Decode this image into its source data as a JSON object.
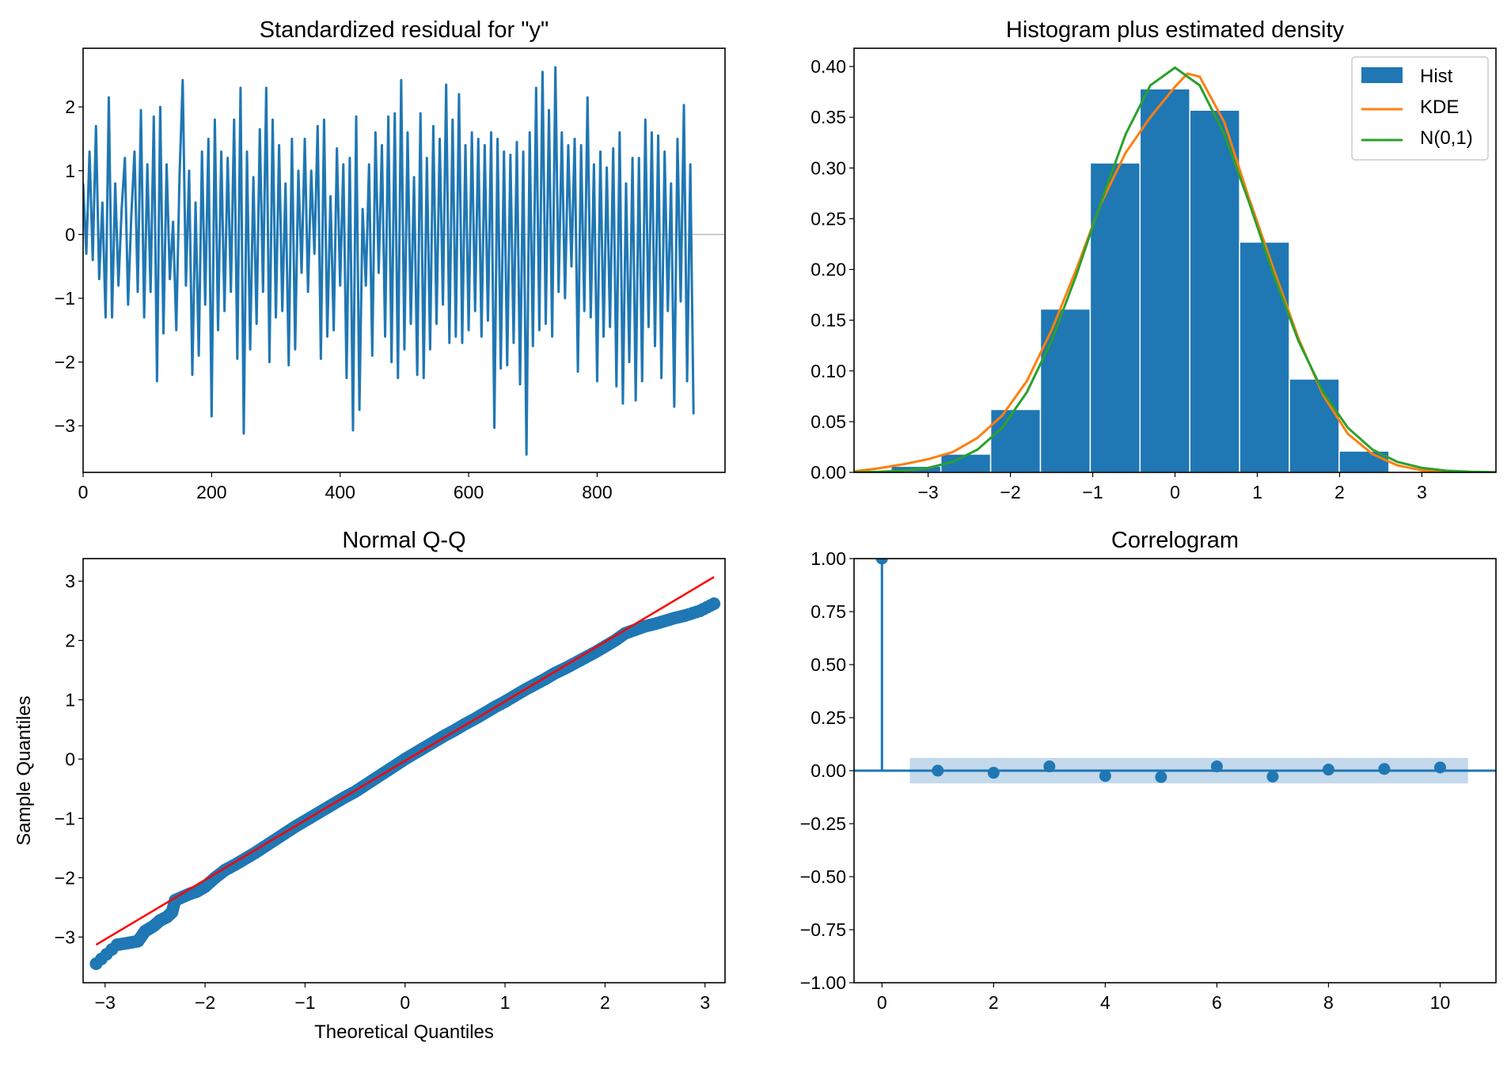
{
  "colors": {
    "blue": "#1f77b4",
    "orange": "#ff7f0e",
    "green": "#2ca02c",
    "red": "#ff0000",
    "band": "#c4d9eb"
  },
  "chart_data": [
    {
      "type": "line",
      "title": "Standardized residual for \"y\"",
      "xlabel": "",
      "ylabel": "",
      "xlim": [
        0,
        999
      ],
      "ylim": [
        -3.73,
        2.92
      ],
      "xticks": [
        "0",
        "200",
        "400",
        "600",
        "800"
      ],
      "xtick_values": [
        0,
        200,
        400,
        600,
        800
      ],
      "yticks": [
        "−3",
        "−2",
        "−1",
        "0",
        "1",
        "2"
      ],
      "ytick_values": [
        -3,
        -2,
        -1,
        0,
        1,
        2
      ],
      "x_step": 5,
      "values": [
        0.8,
        -0.3,
        1.3,
        -0.4,
        1.7,
        -0.7,
        0.5,
        -1.3,
        2.15,
        -1.3,
        0.8,
        -0.8,
        0.4,
        1.2,
        -1.1,
        0.3,
        1.3,
        -0.9,
        1.95,
        -1.3,
        1.1,
        -0.9,
        1.85,
        -2.3,
        2.0,
        -1.55,
        1.1,
        -0.7,
        0.2,
        -1.5,
        0.9,
        2.42,
        -0.8,
        1.0,
        -2.2,
        0.5,
        -1.9,
        1.3,
        -1.1,
        1.5,
        -2.85,
        1.8,
        -1.5,
        1.3,
        -1.2,
        1.2,
        -0.9,
        1.8,
        -1.95,
        2.3,
        -3.12,
        1.3,
        -1.8,
        0.9,
        -1.4,
        1.65,
        -0.9,
        2.3,
        -2.0,
        1.8,
        -1.3,
        1.4,
        -1.2,
        0.8,
        -2.05,
        1.5,
        -1.8,
        1.0,
        -0.6,
        1.5,
        -0.9,
        1.0,
        -0.3,
        1.7,
        -1.95,
        1.8,
        -1.6,
        0.6,
        -1.5,
        1.35,
        -0.8,
        1.1,
        -2.25,
        1.2,
        -3.07,
        1.85,
        -2.75,
        0.4,
        -0.8,
        1.1,
        -1.9,
        1.6,
        -0.6,
        1.4,
        -1.6,
        1.85,
        -2.0,
        1.9,
        -2.25,
        2.42,
        -1.8,
        1.6,
        -1.4,
        0.9,
        -2.2,
        1.9,
        -2.25,
        1.2,
        -1.8,
        1.7,
        -1.4,
        1.5,
        -1.1,
        2.35,
        -1.7,
        1.8,
        -1.6,
        2.2,
        -1.7,
        1.4,
        -1.5,
        1.6,
        -1.2,
        1.5,
        -1.6,
        1.4,
        -1.35,
        1.6,
        -3.03,
        1.5,
        -2.1,
        1.3,
        -2.05,
        1.25,
        -1.7,
        1.45,
        -2.35,
        1.3,
        -3.45,
        1.6,
        -1.75,
        2.3,
        -1.5,
        2.55,
        -1.4,
        1.95,
        -1.6,
        2.62,
        -0.9,
        1.6,
        -1.0,
        1.4,
        -0.5,
        1.5,
        -2.15,
        1.4,
        -1.2,
        2.15,
        -1.3,
        1.1,
        -2.3,
        1.3,
        -1.6,
        1.05,
        -1.45,
        1.35,
        -2.38,
        1.6,
        -2.65,
        0.8,
        -2.0,
        1.2,
        -2.6,
        1.2,
        -2.3,
        1.8,
        -1.45,
        1.6,
        -1.75,
        1.55,
        -2.25,
        1.3,
        -1.2,
        0.8,
        -2.7,
        1.5,
        -1.05,
        2.03,
        -2.3,
        1.1,
        -2.82
      ]
    },
    {
      "type": "bar",
      "title": "Histogram plus estimated density",
      "xlim": [
        -3.9,
        3.9
      ],
      "ylim": [
        0,
        0.418
      ],
      "xticks": [
        "−3",
        "−2",
        "−1",
        "0",
        "1",
        "2",
        "3"
      ],
      "xtick_values": [
        -3,
        -2,
        -1,
        0,
        1,
        2,
        3
      ],
      "yticks": [
        "0.00",
        "0.05",
        "0.10",
        "0.15",
        "0.20",
        "0.25",
        "0.30",
        "0.35",
        "0.40"
      ],
      "ytick_values": [
        0,
        0.05,
        0.1,
        0.15,
        0.2,
        0.25,
        0.3,
        0.35,
        0.4
      ],
      "bin_edges": [
        -3.45,
        -2.845,
        -2.24,
        -1.635,
        -1.03,
        -0.425,
        0.18,
        0.785,
        1.39,
        1.995,
        2.6
      ],
      "hist": [
        0.006,
        0.018,
        0.062,
        0.161,
        0.305,
        0.378,
        0.357,
        0.227,
        0.092,
        0.021
      ],
      "legend": {
        "placement": "top-right",
        "entries": [
          "Hist",
          "KDE",
          "N(0,1)"
        ]
      },
      "series": [
        {
          "name": "KDE",
          "x": [
            -3.9,
            -3.6,
            -3.3,
            -3.0,
            -2.7,
            -2.4,
            -2.1,
            -1.8,
            -1.5,
            -1.2,
            -0.9,
            -0.6,
            -0.3,
            0.0,
            0.15,
            0.3,
            0.6,
            0.9,
            1.2,
            1.5,
            1.8,
            2.1,
            2.4,
            2.7,
            3.0,
            3.3,
            3.6,
            3.9
          ],
          "values": [
            0.001,
            0.004,
            0.008,
            0.013,
            0.02,
            0.034,
            0.056,
            0.09,
            0.14,
            0.2,
            0.265,
            0.315,
            0.35,
            0.38,
            0.393,
            0.39,
            0.345,
            0.27,
            0.2,
            0.132,
            0.076,
            0.038,
            0.018,
            0.007,
            0.002,
            0.0005,
            0.0001,
            0.0
          ]
        },
        {
          "name": "N(0,1)",
          "x": [
            -3.9,
            -3.6,
            -3.3,
            -3.0,
            -2.7,
            -2.4,
            -2.1,
            -1.8,
            -1.5,
            -1.2,
            -0.9,
            -0.6,
            -0.3,
            0.0,
            0.3,
            0.6,
            0.9,
            1.2,
            1.5,
            1.8,
            2.1,
            2.4,
            2.7,
            3.0,
            3.3,
            3.6,
            3.9
          ],
          "values": [
            0.0002,
            0.0006,
            0.0017,
            0.0044,
            0.0104,
            0.0224,
            0.044,
            0.079,
            0.1295,
            0.1942,
            0.2661,
            0.3332,
            0.3814,
            0.3989,
            0.3814,
            0.3332,
            0.2661,
            0.1942,
            0.1295,
            0.079,
            0.044,
            0.0224,
            0.0104,
            0.0044,
            0.0017,
            0.0006,
            0.0002
          ]
        }
      ]
    },
    {
      "type": "scatter",
      "title": "Normal Q-Q",
      "xlabel": "Theoretical Quantiles",
      "ylabel": "Sample Quantiles",
      "xlim": [
        -3.22,
        3.2
      ],
      "ylim": [
        -3.77,
        3.38
      ],
      "xticks": [
        "−3",
        "−2",
        "−1",
        "0",
        "1",
        "2",
        "3"
      ],
      "xtick_values": [
        -3,
        -2,
        -1,
        0,
        1,
        2,
        3
      ],
      "yticks": [
        "−3",
        "−2",
        "−1",
        "0",
        "1",
        "2",
        "3"
      ],
      "ytick_values": [
        -3,
        -2,
        -1,
        0,
        1,
        2,
        3
      ],
      "points": [
        [
          -3.09,
          -3.45
        ],
        [
          -2.88,
          -3.13
        ],
        [
          -2.77,
          -3.1
        ],
        [
          -2.67,
          -3.07
        ],
        [
          -2.6,
          -2.9
        ],
        [
          -2.52,
          -2.82
        ],
        [
          -2.45,
          -2.72
        ],
        [
          -2.38,
          -2.66
        ],
        [
          -2.33,
          -2.58
        ],
        [
          -2.3,
          -2.38
        ],
        [
          -2.22,
          -2.32
        ],
        [
          -2.15,
          -2.27
        ],
        [
          -2.08,
          -2.23
        ],
        [
          -2.0,
          -2.15
        ],
        [
          -1.9,
          -2.0
        ],
        [
          -1.8,
          -1.87
        ],
        [
          -1.7,
          -1.78
        ],
        [
          -1.6,
          -1.68
        ],
        [
          -1.5,
          -1.58
        ],
        [
          -1.4,
          -1.47
        ],
        [
          -1.3,
          -1.36
        ],
        [
          -1.2,
          -1.25
        ],
        [
          -1.1,
          -1.14
        ],
        [
          -1.0,
          -1.04
        ],
        [
          -0.9,
          -0.94
        ],
        [
          -0.8,
          -0.84
        ],
        [
          -0.7,
          -0.74
        ],
        [
          -0.6,
          -0.64
        ],
        [
          -0.5,
          -0.55
        ],
        [
          -0.4,
          -0.44
        ],
        [
          -0.3,
          -0.33
        ],
        [
          -0.2,
          -0.22
        ],
        [
          -0.1,
          -0.11
        ],
        [
          0.0,
          0.0
        ],
        [
          0.1,
          0.1
        ],
        [
          0.2,
          0.2
        ],
        [
          0.3,
          0.3
        ],
        [
          0.4,
          0.4
        ],
        [
          0.5,
          0.49
        ],
        [
          0.6,
          0.59
        ],
        [
          0.7,
          0.68
        ],
        [
          0.8,
          0.78
        ],
        [
          0.9,
          0.88
        ],
        [
          1.0,
          0.97
        ],
        [
          1.1,
          1.07
        ],
        [
          1.2,
          1.17
        ],
        [
          1.3,
          1.26
        ],
        [
          1.4,
          1.35
        ],
        [
          1.5,
          1.45
        ],
        [
          1.6,
          1.53
        ],
        [
          1.7,
          1.62
        ],
        [
          1.8,
          1.71
        ],
        [
          1.9,
          1.8
        ],
        [
          2.0,
          1.9
        ],
        [
          2.1,
          2.0
        ],
        [
          2.2,
          2.12
        ],
        [
          2.3,
          2.18
        ],
        [
          2.4,
          2.24
        ],
        [
          2.5,
          2.28
        ],
        [
          2.6,
          2.33
        ],
        [
          2.7,
          2.38
        ],
        [
          2.8,
          2.42
        ],
        [
          2.95,
          2.5
        ],
        [
          3.09,
          2.62
        ]
      ],
      "reference_line": [
        [
          -3.09,
          -3.13
        ],
        [
          3.09,
          3.07
        ]
      ]
    },
    {
      "type": "stem",
      "title": "Correlogram",
      "xlim": [
        -0.5,
        11
      ],
      "ylim": [
        -1,
        1
      ],
      "xticks": [
        "0",
        "2",
        "4",
        "6",
        "8",
        "10"
      ],
      "xtick_values": [
        0,
        2,
        4,
        6,
        8,
        10
      ],
      "yticks": [
        "−1.00",
        "−0.75",
        "−0.50",
        "−0.25",
        "0.00",
        "0.25",
        "0.50",
        "0.75",
        "1.00"
      ],
      "ytick_values": [
        -1,
        -0.75,
        -0.5,
        -0.25,
        0,
        0.25,
        0.5,
        0.75,
        1
      ],
      "lags": [
        0,
        1,
        2,
        3,
        4,
        5,
        6,
        7,
        8,
        9,
        10
      ],
      "values": [
        1.0,
        0.0,
        -0.01,
        0.02,
        -0.025,
        -0.03,
        0.02,
        -0.028,
        0.005,
        0.008,
        0.015
      ],
      "confidence_band": {
        "from_lag": 0.5,
        "to_lag": 10.5,
        "bound": 0.06
      }
    }
  ]
}
